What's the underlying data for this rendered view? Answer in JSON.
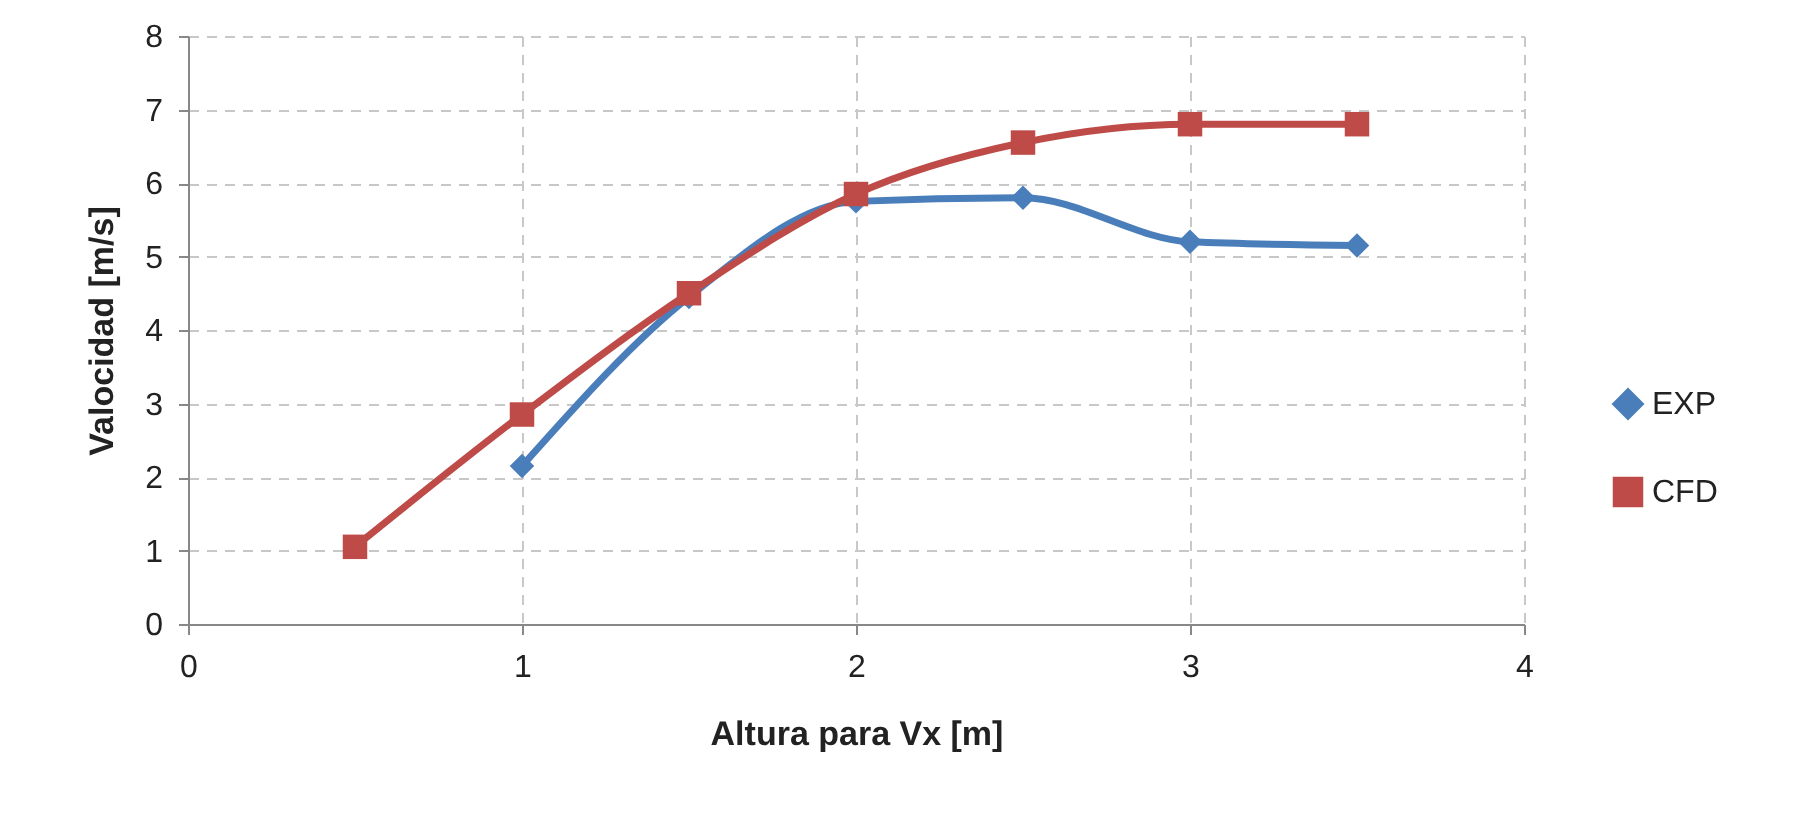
{
  "chart_data": {
    "type": "line",
    "xlabel": "Altura para Vx [m]",
    "ylabel": "Valocidad [m/s]",
    "xlim": [
      0,
      4
    ],
    "xticks": [
      0,
      1,
      2,
      3,
      4
    ],
    "ylim": [
      0,
      8
    ],
    "yticks": [
      0,
      1,
      2,
      3,
      4,
      5,
      6,
      7,
      8
    ],
    "grid": true,
    "legend": "right",
    "line_style": "solid",
    "series": [
      {
        "name": "EXP",
        "color": "#4a7ebb",
        "marker": "diamond",
        "x": [
          1,
          1.5,
          2,
          2.5,
          3,
          3.5
        ],
        "values": [
          2.15,
          4.45,
          5.75,
          5.8,
          5.2,
          5.15
        ]
      },
      {
        "name": "CFD",
        "color": "#be4b48",
        "marker": "square",
        "x": [
          0.5,
          1,
          1.5,
          2,
          2.5,
          3,
          3.5
        ],
        "values": [
          1.05,
          2.85,
          4.5,
          5.85,
          6.55,
          6.8,
          6.8
        ]
      }
    ]
  }
}
